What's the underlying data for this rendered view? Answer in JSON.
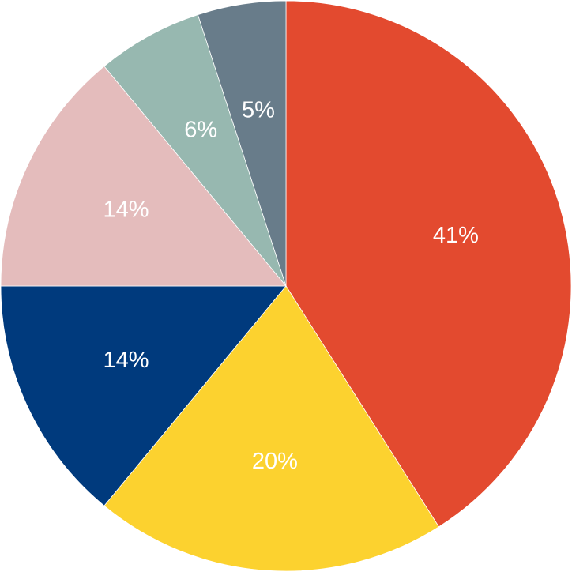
{
  "chart_data": {
    "type": "pie",
    "values": [
      41,
      20,
      14,
      14,
      6,
      5
    ],
    "value_labels": [
      "41%",
      "20%",
      "14%",
      "14%",
      "6%",
      "5%"
    ],
    "colors": [
      "#e34a2f",
      "#fcd22f",
      "#003a7d",
      "#e4bcbc",
      "#97b8b0",
      "#687c8a"
    ]
  }
}
